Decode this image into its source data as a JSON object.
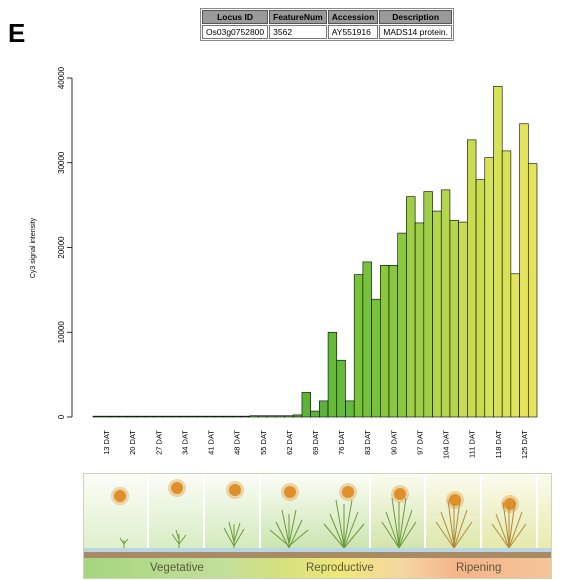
{
  "panel_letter": "E",
  "gene_table": {
    "headers": [
      "Locus ID",
      "FeatureNum",
      "Accession",
      "Description"
    ],
    "row": [
      "Os03g0752800",
      "3562",
      "AY551916",
      "MADS14 protein."
    ]
  },
  "stage_labels": [
    "Vegetative",
    "Reproductive",
    "Ripening"
  ],
  "chart_data": {
    "type": "bar",
    "ylabel": "Cy3 signal intensity",
    "xlabel": "",
    "ylim": [
      0,
      40000
    ],
    "yticks": [
      0,
      10000,
      20000,
      30000,
      40000
    ],
    "grid": false,
    "categories": [
      "13 DAT",
      "20 DAT",
      "27 DAT",
      "34 DAT",
      "41 DAT",
      "48 DAT",
      "55 DAT",
      "62 DAT",
      "69 DAT",
      "76 DAT",
      "83 DAT",
      "90 DAT",
      "97 DAT",
      "104 DAT",
      "111 DAT",
      "118 DAT",
      "125 DAT"
    ],
    "series": [
      {
        "values": [
          100,
          100,
          100,
          100,
          100,
          100,
          150,
          150,
          2900,
          10000,
          16800,
          17900,
          26000,
          24300,
          23000,
          30600,
          16900
        ]
      },
      {
        "values": [
          100,
          100,
          100,
          100,
          100,
          100,
          150,
          150,
          700,
          6700,
          18300,
          17900,
          22900,
          26800,
          32700,
          39000,
          34600
        ]
      },
      {
        "values": [
          100,
          100,
          100,
          100,
          100,
          100,
          150,
          250,
          1900,
          1900,
          13900,
          21700,
          26600,
          23200,
          28000,
          31400,
          29900
        ]
      }
    ],
    "bar_colors": [
      "#3f9a2f",
      "#3f9a2f",
      "#3f9a2f",
      "#3f9a2f",
      "#3f9a2f",
      "#3f9a2f",
      "#4aa334",
      "#52aa36",
      "#5cb338",
      "#66ba3a",
      "#76c23c",
      "#8ac840",
      "#9ecf46",
      "#b4d64c",
      "#c8dc52",
      "#d8e258",
      "#e4e35c"
    ]
  }
}
